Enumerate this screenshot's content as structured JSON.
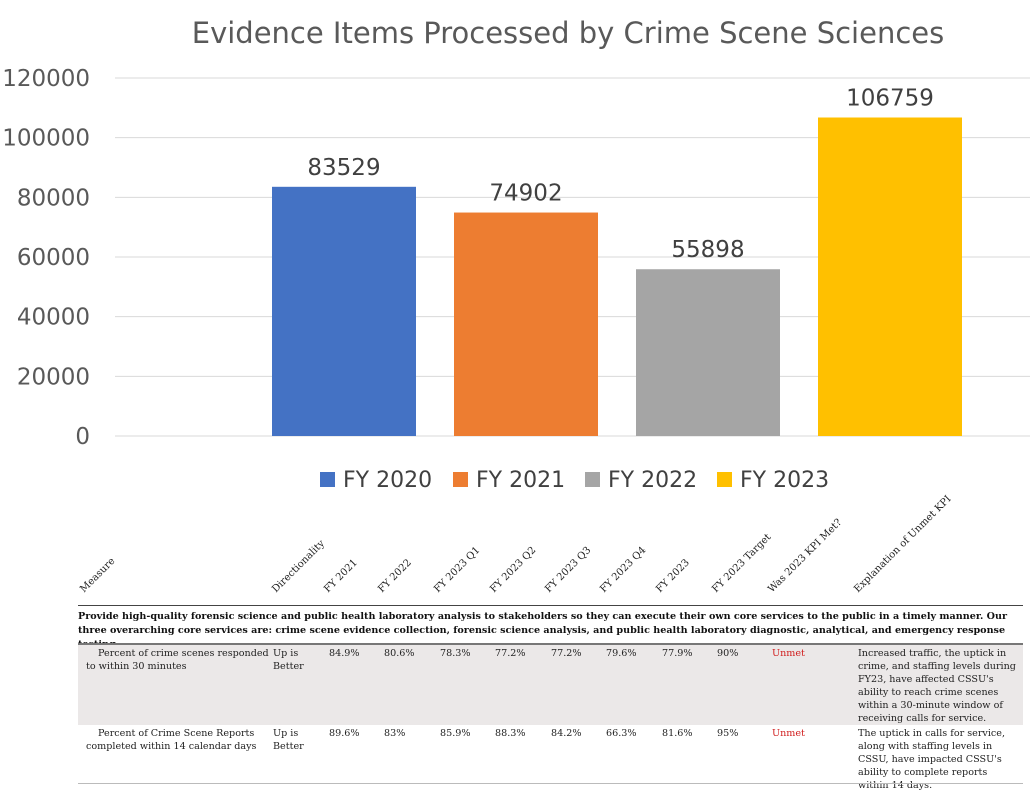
{
  "chart_data": {
    "type": "bar",
    "title": "Evidence Items Processed by Crime Scene Sciences",
    "categories": [
      "FY 2020",
      "FY 2021",
      "FY 2022",
      "FY 2023"
    ],
    "values": [
      83529,
      74902,
      55898,
      106759
    ],
    "colors": [
      "#4472C4",
      "#ED7D31",
      "#A5A5A5",
      "#FFC000"
    ],
    "ylim": [
      0,
      120000
    ],
    "yticks": [
      "0",
      "20000",
      "40000",
      "60000",
      "80000",
      "100000",
      "120000"
    ],
    "data_labels": [
      "83529",
      "74902",
      "55898",
      "106759"
    ],
    "grid": true,
    "legend_position": "bottom",
    "xlabel": "",
    "ylabel": ""
  },
  "table": {
    "headers": [
      "Measure",
      "Directionality",
      "FY 2021",
      "FY 2022",
      "FY 2023 Q1",
      "FY 2023 Q2",
      "FY 2023 Q3",
      "FY 2023 Q4",
      "FY 2023",
      "FY 2023 Target",
      "Was 2023 KPI Met?",
      "Explanation of Unmet KPI"
    ],
    "band_text": "Provide high-quality forensic science and public health laboratory analysis to stakeholders so they can execute their own core services to the public in a timely manner. Our three overarching core services are: crime scene evidence collection, forensic science analysis, and public health laboratory diagnostic, analytical, and emergency response testing",
    "rows": [
      {
        "measure": "Percent of crime scenes responded to within 30 minutes",
        "directionality": "Up is Better",
        "fy2021": "84.9%",
        "fy2022": "80.6%",
        "q1": "78.3%",
        "q2": "77.2%",
        "q3": "77.2%",
        "q4": "79.6%",
        "fy2023": "77.9%",
        "target": "90%",
        "met": "Unmet",
        "explanation": "Increased traffic, the uptick in crime, and staffing levels during FY23, have affected CSSU's ability to reach crime scenes within a 30-minute window of receiving calls for service."
      },
      {
        "measure": "Percent of Crime Scene Reports completed within 14 calendar days",
        "directionality": "Up is Better",
        "fy2021": "89.6%",
        "fy2022": "83%",
        "q1": "85.9%",
        "q2": "88.3%",
        "q3": "84.2%",
        "q4": "66.3%",
        "fy2023": "81.6%",
        "target": "95%",
        "met": "Unmet",
        "explanation": "The uptick in calls for service, along with staffing levels in CSSU, have impacted CSSU's ability to complete reports within 14 days."
      }
    ]
  }
}
